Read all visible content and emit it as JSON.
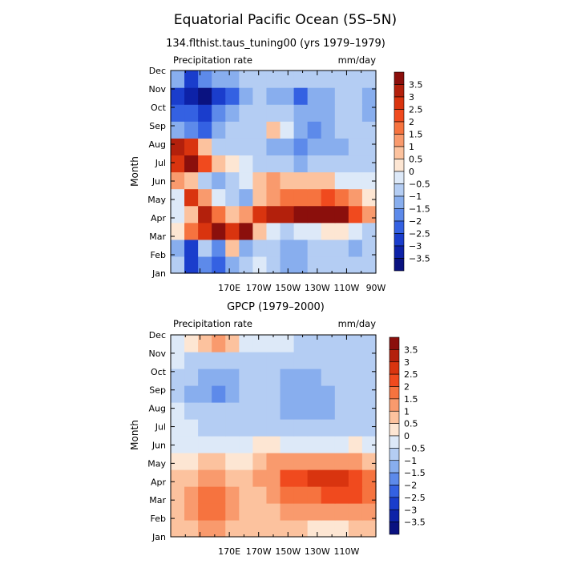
{
  "figure": {
    "title": "Equatorial Pacific Ocean (5S–5N)"
  },
  "colorbar": {
    "levels": [
      "3.5",
      "3",
      "2.5",
      "2",
      "1.5",
      "1",
      "0.5",
      "0",
      "−0.5",
      "−1",
      "−1.5",
      "−2",
      "−2.5",
      "−3",
      "−3.5"
    ],
    "colors": [
      "#8b0f0c",
      "#b3200c",
      "#d9340f",
      "#f04a1e",
      "#f6733f",
      "#f99a6d",
      "#fcc29e",
      "#fde6d3",
      "#dde9f8",
      "#b4cdf3",
      "#88aeee",
      "#5d8aea",
      "#3461e2",
      "#1a3dcc",
      "#0d22a8",
      "#0a1280"
    ]
  },
  "chart_data": [
    {
      "type": "heatmap",
      "title": "134.flthist.taus_tuning00 (yrs 1979–1979)",
      "variable_label": "Precipitation rate",
      "units_label": "mm/day",
      "ylabel": "Month",
      "y_categories": [
        "Jan",
        "Feb",
        "Mar",
        "Apr",
        "May",
        "Jun",
        "Jul",
        "Aug",
        "Sep",
        "Oct",
        "Nov",
        "Dec"
      ],
      "x_ticks": [
        "170E",
        "170W",
        "150W",
        "130W",
        "110W",
        "90W"
      ],
      "x_values_deg_east": [
        130,
        140,
        150,
        160,
        170,
        180,
        190,
        200,
        210,
        220,
        230,
        240,
        250,
        260,
        270
      ],
      "color_range": [
        -3.5,
        3.5
      ],
      "values": [
        [
          -1.0,
          -3.0,
          -2.0,
          -2.5,
          -1.5,
          -1.0,
          -0.5,
          -1.0,
          -1.5,
          -1.5,
          -1.0,
          -1.0,
          -1.0,
          -1.0,
          -1.0
        ],
        [
          -1.5,
          -3.0,
          -1.0,
          -2.0,
          0.5,
          -1.5,
          -1.0,
          -1.0,
          -1.5,
          -1.5,
          -1.0,
          -1.0,
          -1.0,
          -1.5,
          -1.0
        ],
        [
          0.0,
          1.5,
          2.5,
          3.5,
          2.5,
          3.5,
          0.5,
          -0.5,
          -1.0,
          -0.5,
          -0.5,
          0.0,
          0.0,
          -0.5,
          -1.0
        ],
        [
          -0.5,
          0.5,
          3.0,
          1.5,
          0.5,
          1.0,
          2.5,
          3.0,
          3.0,
          4.0,
          4.0,
          4.0,
          3.5,
          2.0,
          1.0
        ],
        [
          -0.5,
          2.5,
          1.0,
          -0.5,
          -1.0,
          -1.5,
          0.5,
          1.0,
          1.5,
          1.5,
          1.5,
          2.0,
          1.5,
          1.0,
          0.0
        ],
        [
          1.0,
          0.5,
          -1.0,
          -1.5,
          -1.0,
          -0.5,
          0.5,
          1.0,
          0.5,
          0.5,
          0.5,
          0.5,
          -0.5,
          -0.5,
          -0.5
        ],
        [
          2.5,
          4.0,
          2.0,
          0.5,
          0.0,
          -0.5,
          -1.0,
          -1.0,
          -1.0,
          -1.5,
          -1.0,
          -1.0,
          -1.0,
          -1.0,
          -1.0
        ],
        [
          3.0,
          2.5,
          0.5,
          -1.0,
          -1.0,
          -1.0,
          -1.0,
          -1.5,
          -1.5,
          -2.0,
          -1.5,
          -1.5,
          -1.5,
          -1.0,
          -1.0
        ],
        [
          -1.5,
          -2.0,
          -2.5,
          -1.5,
          -1.0,
          -1.0,
          -1.0,
          0.5,
          -0.5,
          -1.5,
          -2.0,
          -1.5,
          -1.0,
          -1.0,
          -1.0
        ],
        [
          -2.5,
          -2.5,
          -3.0,
          -2.0,
          -1.5,
          -1.0,
          -1.0,
          -1.0,
          -1.0,
          -1.5,
          -1.5,
          -1.5,
          -1.0,
          -1.0,
          -1.5
        ],
        [
          -3.0,
          -3.5,
          -4.0,
          -3.0,
          -2.5,
          -1.5,
          -1.0,
          -1.5,
          -1.5,
          -2.5,
          -1.5,
          -1.5,
          -1.0,
          -1.0,
          -1.5
        ],
        [
          -1.5,
          -3.0,
          -2.0,
          -1.5,
          -1.5,
          -1.0,
          -1.0,
          -1.0,
          -1.0,
          -1.0,
          -1.0,
          -1.0,
          -1.0,
          -1.0,
          -1.0
        ]
      ]
    },
    {
      "type": "heatmap",
      "title": "GPCP (1979–2000)",
      "variable_label": "Precipitation rate",
      "units_label": "mm/day",
      "ylabel": "Month",
      "y_categories": [
        "Jan",
        "Feb",
        "Mar",
        "Apr",
        "May",
        "Jun",
        "Jul",
        "Aug",
        "Sep",
        "Oct",
        "Nov",
        "Dec"
      ],
      "x_ticks": [
        "170E",
        "170W",
        "150W",
        "130W",
        "110W"
      ],
      "x_values_deg_east": [
        130,
        140,
        150,
        160,
        170,
        180,
        190,
        200,
        210,
        220,
        230,
        240,
        250,
        260,
        270
      ],
      "color_range": [
        -3.5,
        3.5
      ],
      "values": [
        [
          0.5,
          0.5,
          1.0,
          1.0,
          0.5,
          0.5,
          0.5,
          0.5,
          0.5,
          0.5,
          0.0,
          0.0,
          0.0,
          0.5,
          0.5
        ],
        [
          0.5,
          1.0,
          1.5,
          1.5,
          1.0,
          0.5,
          0.5,
          0.5,
          1.0,
          1.0,
          1.0,
          1.0,
          1.0,
          1.0,
          1.0
        ],
        [
          0.5,
          1.0,
          1.5,
          1.5,
          1.0,
          0.5,
          0.5,
          1.0,
          1.5,
          1.5,
          1.5,
          2.0,
          2.0,
          2.0,
          1.5
        ],
        [
          0.5,
          0.5,
          1.0,
          1.0,
          0.5,
          0.5,
          1.0,
          1.0,
          2.0,
          2.0,
          2.5,
          2.5,
          2.5,
          2.0,
          1.5
        ],
        [
          0.0,
          0.0,
          0.5,
          0.5,
          0.0,
          0.0,
          0.5,
          1.0,
          1.0,
          1.0,
          1.0,
          1.0,
          1.0,
          1.0,
          0.5
        ],
        [
          -0.5,
          -0.5,
          -0.5,
          -0.5,
          -0.5,
          -0.5,
          0.0,
          0.0,
          -0.5,
          -0.5,
          -0.5,
          -0.5,
          -0.5,
          0.0,
          -0.5
        ],
        [
          -0.5,
          -0.5,
          -1.0,
          -1.0,
          -1.0,
          -1.0,
          -1.0,
          -1.0,
          -1.0,
          -1.0,
          -1.0,
          -1.0,
          -1.0,
          -1.0,
          -1.0
        ],
        [
          -0.5,
          -1.0,
          -1.0,
          -1.0,
          -1.0,
          -1.0,
          -1.0,
          -1.0,
          -1.5,
          -1.5,
          -1.5,
          -1.5,
          -1.0,
          -1.0,
          -1.0
        ],
        [
          -1.0,
          -1.5,
          -1.5,
          -2.0,
          -1.5,
          -1.0,
          -1.0,
          -1.0,
          -1.5,
          -1.5,
          -1.5,
          -1.5,
          -1.0,
          -1.0,
          -1.0
        ],
        [
          -1.0,
          -1.0,
          -1.5,
          -1.5,
          -1.5,
          -1.0,
          -1.0,
          -1.0,
          -1.5,
          -1.5,
          -1.5,
          -1.0,
          -1.0,
          -1.0,
          -1.0
        ],
        [
          -0.5,
          -1.0,
          -1.0,
          -1.0,
          -1.0,
          -1.0,
          -1.0,
          -1.0,
          -1.0,
          -1.0,
          -1.0,
          -1.0,
          -1.0,
          -1.0,
          -1.0
        ],
        [
          -0.5,
          0.0,
          0.5,
          1.0,
          0.5,
          -0.5,
          -0.5,
          -0.5,
          -0.5,
          -1.0,
          -1.0,
          -1.0,
          -1.0,
          -1.0,
          -1.0
        ]
      ]
    }
  ]
}
